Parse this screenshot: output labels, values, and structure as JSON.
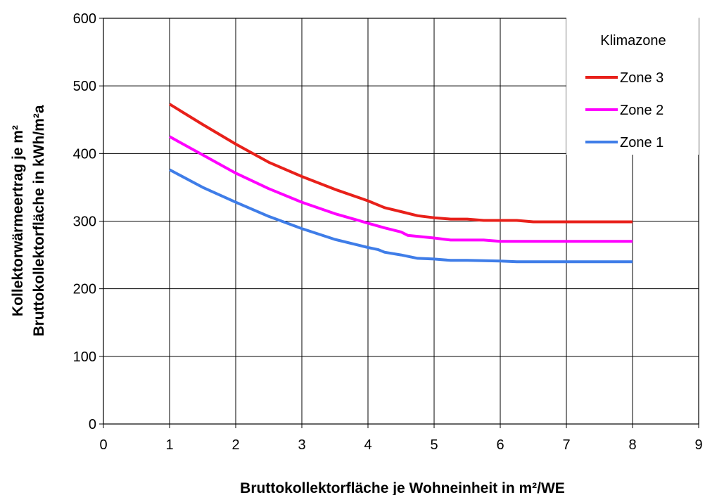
{
  "chart_data": {
    "type": "line",
    "xlabel": "Bruttokollektorfläche je Wohneinheit in m²/WE",
    "ylabel_line1": "Kollektorwärmeertrag je m²",
    "ylabel_line2": "Bruttokollektorfläche in kWh/m²a",
    "xlim": [
      0,
      9
    ],
    "ylim": [
      0,
      600
    ],
    "xticks": [
      0,
      1,
      2,
      3,
      4,
      5,
      6,
      7,
      8,
      9
    ],
    "yticks": [
      0,
      100,
      200,
      300,
      400,
      500,
      600
    ],
    "grid": true,
    "legend": {
      "title": "Klimazone",
      "position": "top-right"
    },
    "series": [
      {
        "name": "Zone 3",
        "color": "#e8201a",
        "points": [
          [
            1,
            473
          ],
          [
            1.5,
            443
          ],
          [
            2,
            414
          ],
          [
            2.5,
            387
          ],
          [
            3,
            366
          ],
          [
            3.5,
            347
          ],
          [
            4,
            330
          ],
          [
            4.25,
            320
          ],
          [
            4.5,
            314
          ],
          [
            4.75,
            308
          ],
          [
            5,
            305
          ],
          [
            5.25,
            303
          ],
          [
            5.5,
            303
          ],
          [
            5.75,
            301
          ],
          [
            6,
            301
          ],
          [
            6.25,
            301
          ],
          [
            6.5,
            299
          ],
          [
            7,
            299
          ],
          [
            7.5,
            299
          ],
          [
            8,
            299
          ]
        ]
      },
      {
        "name": "Zone 2",
        "color": "#ff00ff",
        "points": [
          [
            1,
            425
          ],
          [
            1.5,
            398
          ],
          [
            2,
            371
          ],
          [
            2.5,
            348
          ],
          [
            3,
            328
          ],
          [
            3.5,
            311
          ],
          [
            4,
            297
          ],
          [
            4.25,
            290
          ],
          [
            4.5,
            284
          ],
          [
            4.6,
            279
          ],
          [
            5,
            275
          ],
          [
            5.25,
            272
          ],
          [
            5.5,
            272
          ],
          [
            5.75,
            272
          ],
          [
            6,
            270
          ],
          [
            6.5,
            270
          ],
          [
            7,
            270
          ],
          [
            7.5,
            270
          ],
          [
            8,
            270
          ]
        ]
      },
      {
        "name": "Zone 1",
        "color": "#3f7de8",
        "points": [
          [
            1,
            376
          ],
          [
            1.5,
            350
          ],
          [
            2,
            328
          ],
          [
            2.5,
            307
          ],
          [
            3,
            289
          ],
          [
            3.5,
            273
          ],
          [
            4,
            261
          ],
          [
            4.15,
            258
          ],
          [
            4.25,
            254
          ],
          [
            4.5,
            250
          ],
          [
            4.75,
            245
          ],
          [
            5,
            244
          ],
          [
            5.25,
            242
          ],
          [
            5.5,
            242
          ],
          [
            6,
            241
          ],
          [
            6.25,
            240
          ],
          [
            6.5,
            240
          ],
          [
            7,
            240
          ],
          [
            7.5,
            240
          ],
          [
            8,
            240
          ]
        ]
      }
    ]
  }
}
